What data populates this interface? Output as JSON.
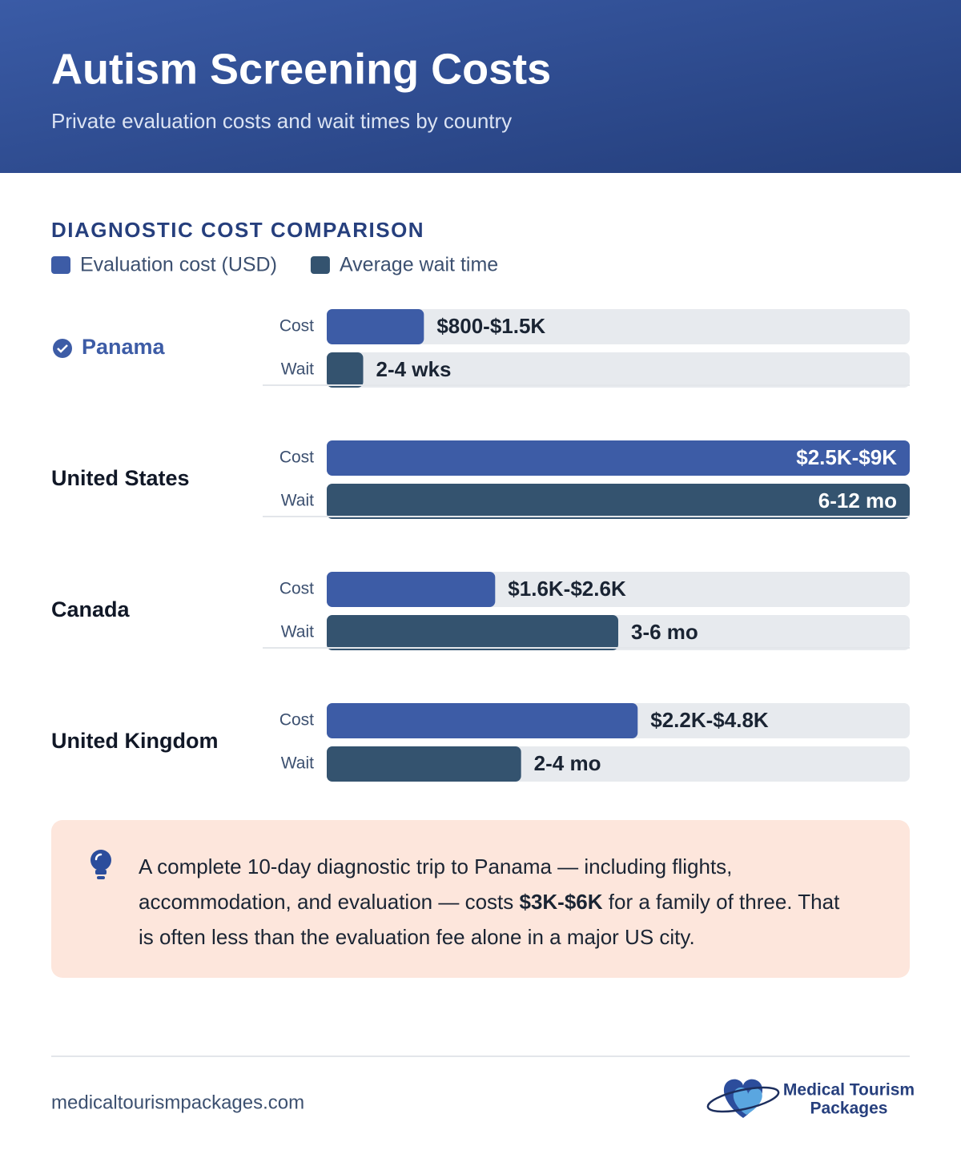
{
  "header": {
    "title": "Autism Screening Costs",
    "subtitle": "Private evaluation costs and wait times by country"
  },
  "chart_data": {
    "type": "bar",
    "orientation": "horizontal",
    "title": "DIAGNOSTIC COST COMPARISON",
    "categories": [
      "Panama",
      "United States",
      "Canada",
      "United Kingdom"
    ],
    "highlight": "Panama",
    "series": [
      {
        "name": "Evaluation cost (USD)",
        "row_label": "Cost",
        "color": "#3d5ca6",
        "xlim": [
          0,
          9000
        ],
        "values": [
          1500,
          9000,
          2600,
          4800
        ],
        "value_labels": [
          "$800-$1.5K",
          "$2.5K-$9K",
          "$1.6K-$2.6K",
          "$2.2K-$4.8K"
        ]
      },
      {
        "name": "Average wait time",
        "row_label": "Wait",
        "color": "#34536f",
        "xlim": [
          0,
          12
        ],
        "values": [
          0.75,
          12,
          6,
          4
        ],
        "value_labels": [
          "2-4 wks",
          "6-12 mo",
          "3-6 mo",
          "2-4 mo"
        ]
      }
    ]
  },
  "callout": {
    "parts": [
      "A complete 10-day diagnostic trip to Panama — including flights, accommodation, and evaluation — costs ",
      "$3K-$6K",
      " for a family of three. That is often less than the evaluation fee alone in a major US city."
    ]
  },
  "footer": {
    "website": "medicaltourismpackages.com",
    "logo": [
      "Medical Tourism",
      "Packages"
    ]
  }
}
